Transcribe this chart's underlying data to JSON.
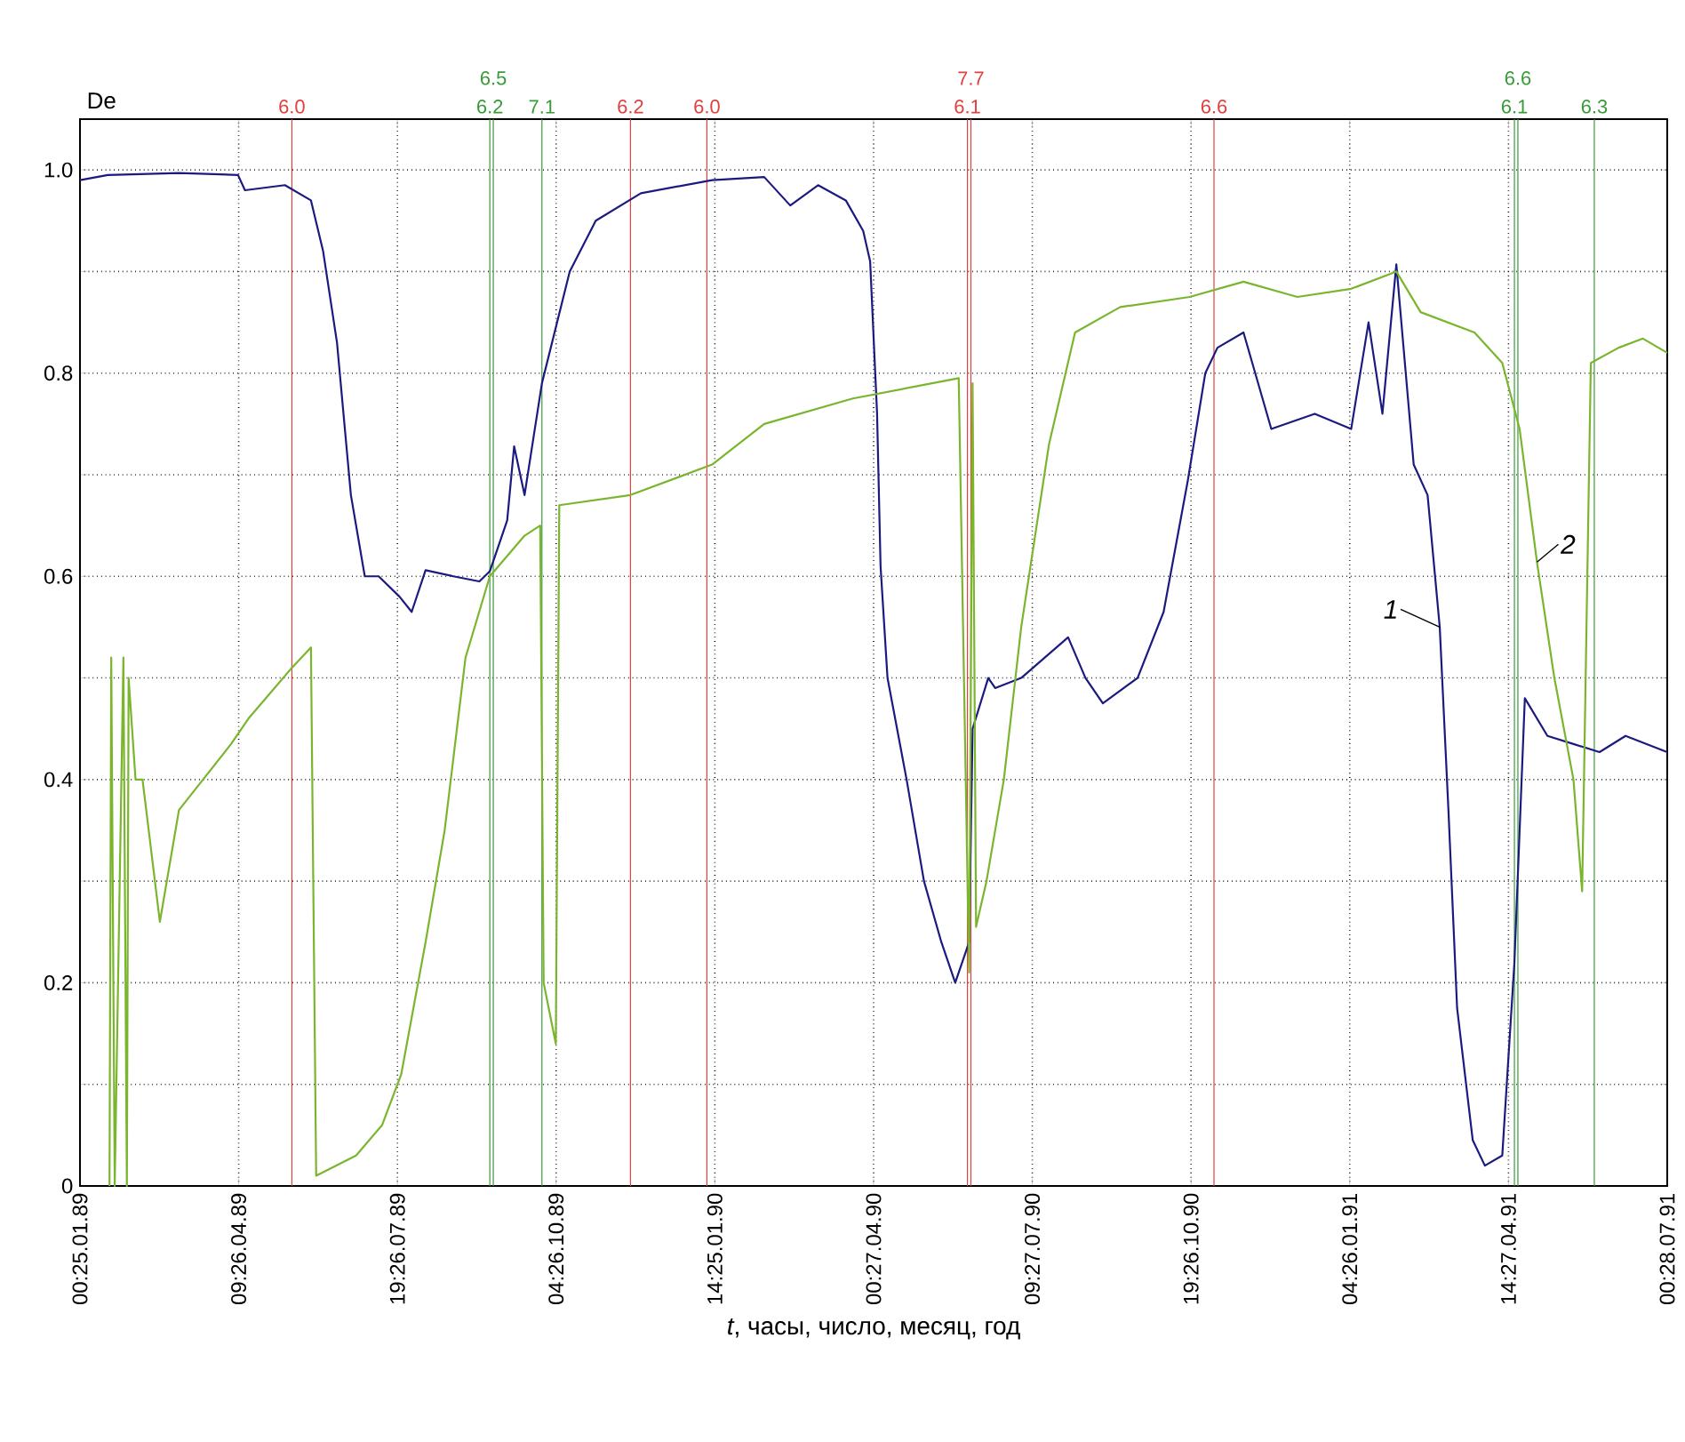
{
  "chart_data": {
    "type": "line",
    "ylabel": "De",
    "xlabel": "*t*, часы, число, месяц, год",
    "xlim": [
      "1989-01-25T00:00",
      "1991-07-28T00:00"
    ],
    "ylim": [
      0,
      1.05
    ],
    "xticks": [
      {
        "value": "1989-01-25T00:00",
        "label": "00:25.01.89"
      },
      {
        "value": "1989-04-26T09:00",
        "label": "09:26.04.89"
      },
      {
        "value": "1989-07-26T19:00",
        "label": "19:26.07.89"
      },
      {
        "value": "1989-10-26T04:00",
        "label": "04:26.10.89"
      },
      {
        "value": "1990-01-25T14:00",
        "label": "14:25.01.90"
      },
      {
        "value": "1990-04-27T00:00",
        "label": "00:27.04.90"
      },
      {
        "value": "1990-07-27T09:00",
        "label": "09:27.07.90"
      },
      {
        "value": "1990-10-26T19:00",
        "label": "19:26.10.90"
      },
      {
        "value": "1991-01-26T04:00",
        "label": "04:26.01.91"
      },
      {
        "value": "1991-04-27T14:00",
        "label": "14:27.04.91"
      },
      {
        "value": "1991-07-28T00:00",
        "label": "00:28.07.91"
      }
    ],
    "yticks": [
      0,
      {
        "value": 0.1,
        "label": null
      },
      0.2,
      {
        "value": 0.3,
        "label": null
      },
      0.4,
      {
        "value": 0.5,
        "label": null
      },
      0.6,
      {
        "value": 0.7,
        "label": null
      },
      0.8,
      {
        "value": 0.9,
        "label": null
      },
      {
        "value": 1,
        "label": "1.0"
      }
    ],
    "grid": true,
    "marker": "none",
    "line_style": "solid",
    "series": [
      {
        "name": "1",
        "color": "#1a1a80",
        "x": [
          "1989-01-25",
          "1989-02-10",
          "1989-03-23",
          "1989-04-26",
          "1989-04-30",
          "1989-05-23",
          "1989-06-07",
          "1989-06-14",
          "1989-06-22",
          "1989-06-30",
          "1989-07-08",
          "1989-07-16",
          "1989-07-28",
          "1989-08-04",
          "1989-08-12",
          "1989-08-28",
          "1989-09-12",
          "1989-09-18",
          "1989-09-28",
          "1989-10-02",
          "1989-10-08",
          "1989-10-18",
          "1989-11-03",
          "1989-11-18",
          "1989-12-14",
          "1990-01-24",
          "1990-02-23",
          "1990-03-10",
          "1990-03-26",
          "1990-04-11",
          "1990-04-21",
          "1990-04-25",
          "1990-04-29",
          "1990-05-01",
          "1990-05-05",
          "1990-05-16",
          "1990-05-26",
          "1990-06-05",
          "1990-06-13",
          "1990-06-21",
          "1990-06-23",
          "1990-07-02",
          "1990-07-06",
          "1990-07-21",
          "1990-08-17",
          "1990-08-27",
          "1990-09-06",
          "1990-09-26",
          "1990-10-11",
          "1990-10-25",
          "1990-11-04",
          "1990-11-11",
          "1990-11-26",
          "1990-12-12",
          "1991-01-06",
          "1991-01-27",
          "1991-02-06",
          "1991-02-14",
          "1991-02-22",
          "1991-03-04",
          "1991-03-12",
          "1991-03-19",
          "1991-03-24",
          "1991-03-29",
          "1991-04-07",
          "1991-04-14",
          "1991-04-24",
          "1991-05-01",
          "1991-05-07",
          "1991-05-20",
          "1991-06-04",
          "1991-06-19",
          "1991-07-04",
          "1991-07-28"
        ],
        "values": [
          0.99,
          0.995,
          0.997,
          0.995,
          0.98,
          0.985,
          0.97,
          0.92,
          0.83,
          0.68,
          0.6,
          0.6,
          0.58,
          0.565,
          0.606,
          0.6,
          0.595,
          0.605,
          0.655,
          0.728,
          0.68,
          0.79,
          0.9,
          0.95,
          0.977,
          0.99,
          0.993,
          0.965,
          0.985,
          0.97,
          0.94,
          0.91,
          0.76,
          0.61,
          0.5,
          0.4,
          0.3,
          0.24,
          0.2,
          0.24,
          0.45,
          0.5,
          0.49,
          0.5,
          0.54,
          0.5,
          0.475,
          0.5,
          0.565,
          0.695,
          0.8,
          0.825,
          0.84,
          0.745,
          0.76,
          0.745,
          0.85,
          0.76,
          0.907,
          0.71,
          0.68,
          0.55,
          0.37,
          0.175,
          0.045,
          0.02,
          0.03,
          0.22,
          0.48,
          0.443,
          0.435,
          0.427,
          0.443,
          0.427
        ]
      },
      {
        "name": "2",
        "color": "#7ab52e",
        "x": [
          "1989-02-11",
          "1989-02-12",
          "1989-02-14",
          "1989-02-19",
          "1989-02-21",
          "1989-02-22",
          "1989-02-26",
          "1989-03-02",
          "1989-03-12",
          "1989-03-23",
          "1989-04-22",
          "1989-05-02",
          "1989-05-27",
          "1989-06-07",
          "1989-06-10",
          "1989-07-03",
          "1989-07-18",
          "1989-07-29",
          "1989-08-12",
          "1989-08-23",
          "1989-09-04",
          "1989-09-18",
          "1989-10-08",
          "1989-10-17",
          "1989-10-19",
          "1989-10-26",
          "1989-10-28",
          "1989-12-08",
          "1990-01-24",
          "1990-02-23",
          "1990-04-15",
          "1990-06-15",
          "1990-06-21",
          "1990-06-23",
          "1990-06-25",
          "1990-07-01",
          "1990-07-11",
          "1990-07-21",
          "1990-08-06",
          "1990-08-21",
          "1990-09-16",
          "1990-10-26",
          "1990-11-26",
          "1990-12-27",
          "1991-01-27",
          "1991-02-22",
          "1991-03-08",
          "1991-04-08",
          "1991-04-24",
          "1991-05-04",
          "1991-05-14",
          "1991-05-24",
          "1991-06-04",
          "1991-06-09",
          "1991-06-14",
          "1991-06-30",
          "1991-07-14",
          "1991-07-28"
        ],
        "values": [
          0,
          0.52,
          0,
          0.52,
          0,
          0.5,
          0.4,
          0.4,
          0.26,
          0.37,
          0.435,
          0.46,
          0.51,
          0.53,
          0.01,
          0.03,
          0.06,
          0.11,
          0.24,
          0.35,
          0.52,
          0.6,
          0.64,
          0.65,
          0.2,
          0.14,
          0.67,
          0.68,
          0.71,
          0.75,
          0.775,
          0.795,
          0.21,
          0.79,
          0.255,
          0.3,
          0.4,
          0.55,
          0.73,
          0.84,
          0.865,
          0.875,
          0.89,
          0.875,
          0.883,
          0.9,
          0.86,
          0.84,
          0.81,
          0.745,
          0.614,
          0.5,
          0.4,
          0.29,
          0.81,
          0.825,
          0.834,
          0.82
        ]
      }
    ],
    "ref_lines": [
      {
        "axis": "x",
        "value": "1989-05-27",
        "label": "6.0",
        "color": "#e04040"
      },
      {
        "axis": "x",
        "value": "1989-09-18",
        "label": "6.2",
        "color": "#3a9a3a"
      },
      {
        "axis": "x",
        "value": "1989-09-20",
        "label": "6.5",
        "color": "#3a9a3a"
      },
      {
        "axis": "x",
        "value": "1989-10-18",
        "label": "7.1",
        "color": "#3a9a3a"
      },
      {
        "axis": "x",
        "value": "1989-12-08",
        "label": "6.2",
        "color": "#e04040"
      },
      {
        "axis": "x",
        "value": "1990-01-21",
        "label": "6.0",
        "color": "#e04040"
      },
      {
        "axis": "x",
        "value": "1990-06-20",
        "label": "6.1",
        "color": "#e04040"
      },
      {
        "axis": "x",
        "value": "1990-06-22",
        "label": "7.7",
        "color": "#e04040"
      },
      {
        "axis": "x",
        "value": "1990-11-09",
        "label": "6.6",
        "color": "#e04040"
      },
      {
        "axis": "x",
        "value": "1991-05-01",
        "label": "6.1",
        "color": "#3a9a3a"
      },
      {
        "axis": "x",
        "value": "1991-05-03",
        "label": "6.6",
        "color": "#3a9a3a"
      },
      {
        "axis": "x",
        "value": "1991-06-16",
        "label": "6.3",
        "color": "#3a9a3a"
      }
    ]
  }
}
